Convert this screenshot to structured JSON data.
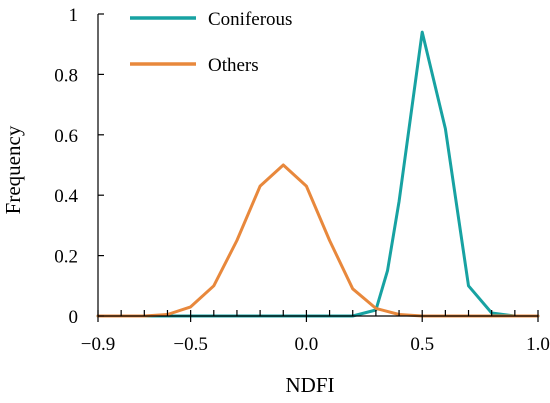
{
  "chart_data": {
    "type": "line",
    "title": "",
    "xlabel": "NDFI",
    "ylabel": "Frequency",
    "xlim": [
      -0.9,
      1.0
    ],
    "ylim": [
      0,
      1
    ],
    "x_ticks": [
      -0.9,
      -0.5,
      0.0,
      0.5,
      1.0
    ],
    "x_tick_labels": [
      "−0.9",
      "−0.5",
      "0.0",
      "0.5",
      "1.0"
    ],
    "y_ticks": [
      0,
      0.2,
      0.4,
      0.6,
      0.8,
      1
    ],
    "y_tick_labels": [
      "0",
      "0.2",
      "0.4",
      "0.6",
      "0.8",
      "1"
    ],
    "x_minor_step": 0.1,
    "grid": false,
    "legend": {
      "placement": "top-left"
    },
    "series": [
      {
        "name": "Coniferous",
        "color": "#17a2a2",
        "x": [
          -0.9,
          -0.8,
          -0.7,
          -0.6,
          -0.5,
          -0.4,
          -0.3,
          -0.2,
          -0.1,
          0.0,
          0.1,
          0.2,
          0.3,
          0.35,
          0.4,
          0.5,
          0.6,
          0.7,
          0.8,
          0.9,
          1.0
        ],
        "values": [
          0,
          0,
          0,
          0,
          0,
          0,
          0,
          0,
          0,
          0,
          0,
          0,
          0.02,
          0.15,
          0.38,
          0.94,
          0.62,
          0.1,
          0.01,
          0,
          0
        ]
      },
      {
        "name": "Others",
        "color": "#e8883c",
        "x": [
          -0.9,
          -0.8,
          -0.7,
          -0.6,
          -0.5,
          -0.4,
          -0.3,
          -0.2,
          -0.1,
          0.0,
          0.1,
          0.2,
          0.3,
          0.4,
          0.5,
          0.6,
          0.7,
          0.8,
          0.9,
          1.0
        ],
        "values": [
          0,
          0,
          0,
          0.005,
          0.03,
          0.1,
          0.25,
          0.43,
          0.5,
          0.43,
          0.25,
          0.09,
          0.025,
          0.005,
          0,
          0,
          0,
          0,
          0,
          0
        ]
      }
    ]
  }
}
